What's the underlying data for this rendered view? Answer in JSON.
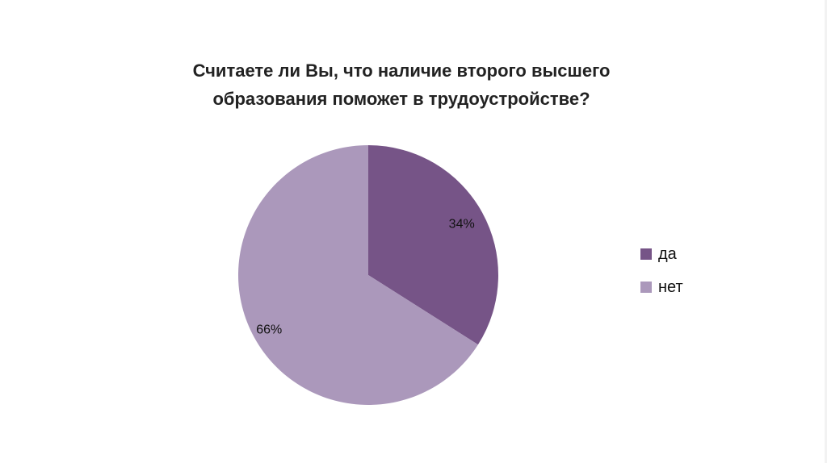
{
  "chart_data": {
    "type": "pie",
    "title_lines": [
      "Считаете ли Вы, что наличие второго высшего",
      "образования поможет в трудоустройстве?"
    ],
    "slices": [
      {
        "label": "да",
        "value": 34,
        "display": "34%",
        "color": "#765487"
      },
      {
        "label": "нет",
        "value": 66,
        "display": "66%",
        "color": "#ab98bb"
      }
    ],
    "legend_position": "right",
    "start_angle": "12 o'clock, clockwise"
  }
}
